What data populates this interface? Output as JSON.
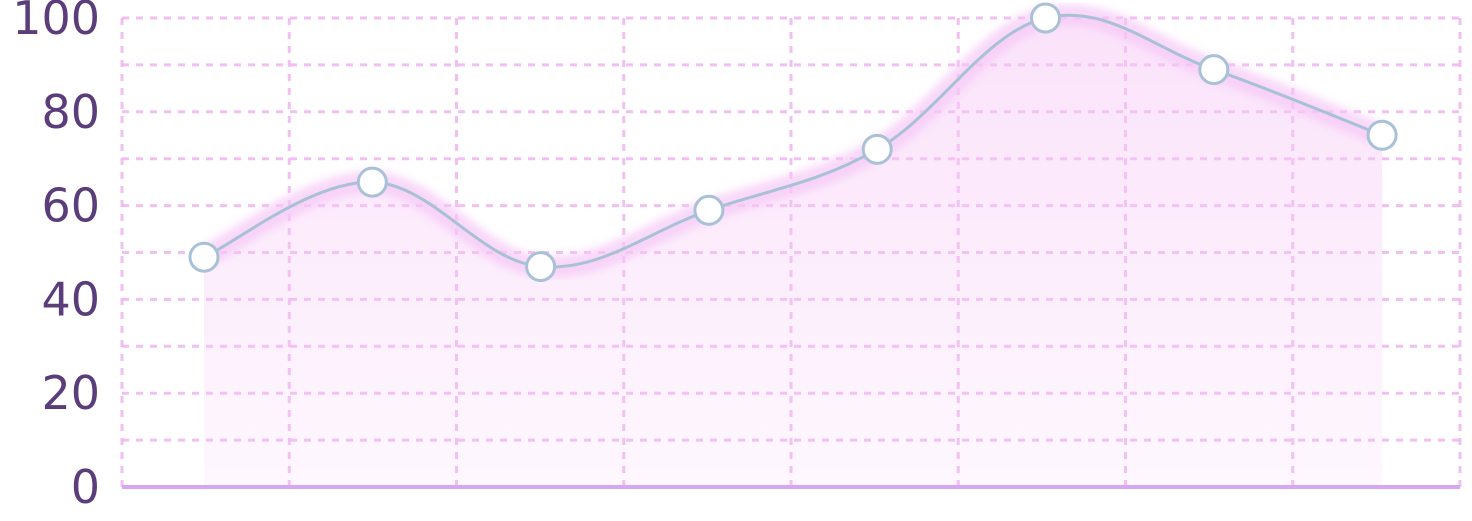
{
  "chart_data": {
    "type": "area",
    "title": "",
    "xlabel": "",
    "ylabel": "",
    "ylim": [
      0,
      100
    ],
    "yticks": [
      "0",
      "20",
      "40",
      "60",
      "80",
      "100"
    ],
    "categories": [
      "",
      "",
      "",
      "",
      "",
      "",
      "",
      ""
    ],
    "series": [
      {
        "values": [
          49,
          65,
          47,
          59,
          72,
          100,
          89,
          75
        ]
      }
    ],
    "grid": true,
    "legend": "none",
    "colors": {
      "line": "#a9c1d6",
      "marker_fill": "#ffffff",
      "area": "#f6c8f6",
      "grid": "#f0b5f0",
      "baseline": "#d6a6f0",
      "tick_text": "#5a3d7a"
    }
  }
}
